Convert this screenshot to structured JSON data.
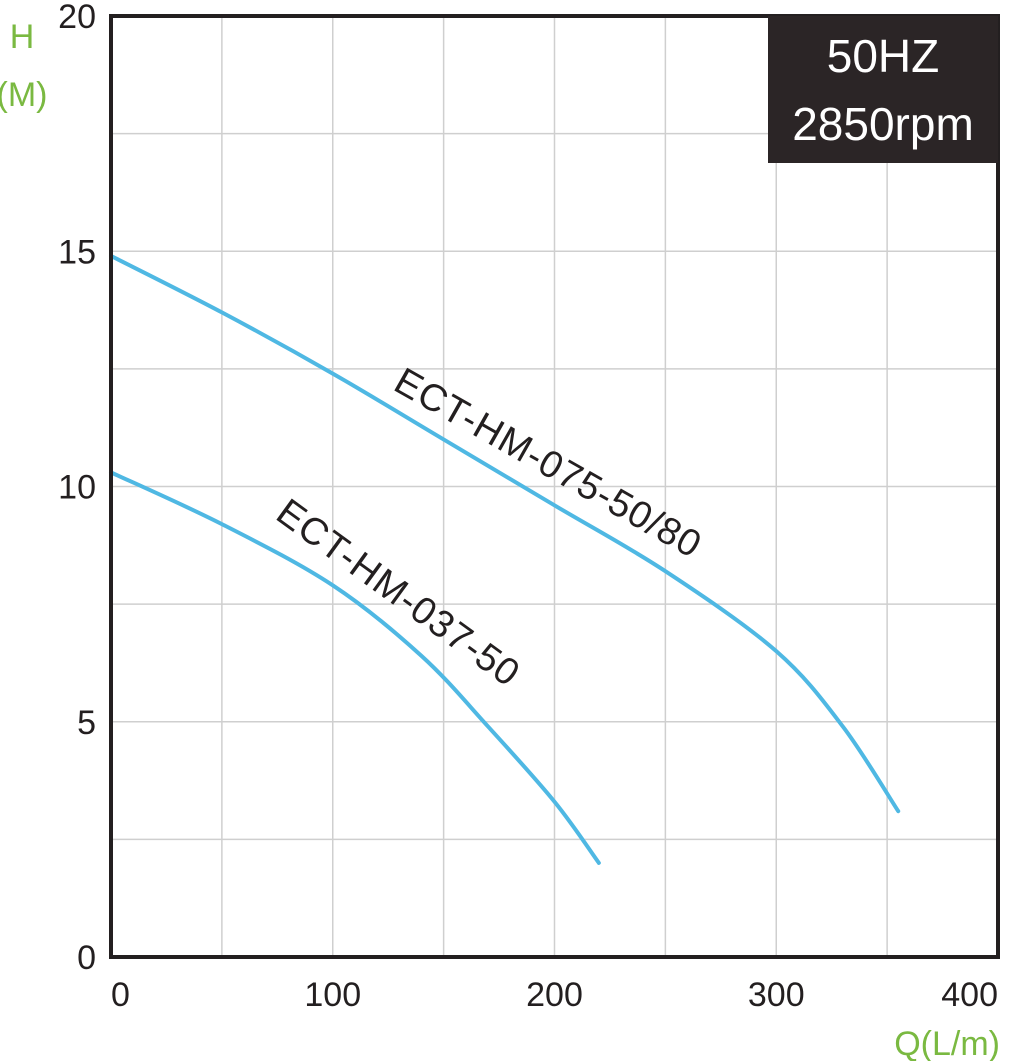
{
  "chart_data": {
    "type": "line",
    "xlabel": "Q(L/m)",
    "ylabel_line1": "H",
    "ylabel_line2": "(M)",
    "xlim": [
      0,
      400
    ],
    "ylim": [
      0,
      20
    ],
    "x_ticks": [
      0,
      100,
      200,
      300,
      400
    ],
    "y_ticks": [
      0,
      5,
      10,
      15,
      20
    ],
    "x_tick_labels": [
      "0",
      "100",
      "200",
      "300",
      "400"
    ],
    "y_tick_labels": [
      "0",
      "5",
      "10",
      "15",
      "20"
    ],
    "grid": true,
    "series": [
      {
        "name": "ECT-HM-075-50/80",
        "x": [
          0,
          50,
          100,
          150,
          200,
          250,
          300,
          330,
          355
        ],
        "y": [
          14.9,
          13.7,
          12.4,
          11.0,
          9.6,
          8.2,
          6.5,
          4.9,
          3.1
        ]
      },
      {
        "name": "ECT-HM-037-50",
        "x": [
          0,
          50,
          100,
          140,
          170,
          200,
          220
        ],
        "y": [
          10.3,
          9.2,
          7.9,
          6.4,
          4.9,
          3.3,
          2.0
        ]
      }
    ],
    "annotation_line1": "50HZ",
    "annotation_line2": "2850rpm",
    "colors": {
      "curve": "#4fb8e3",
      "axis": "#231f20",
      "grid": "#cfcfcf",
      "unit_label": "#7ab941",
      "badge_bg": "#2b2526",
      "badge_text": "#ffffff"
    }
  }
}
